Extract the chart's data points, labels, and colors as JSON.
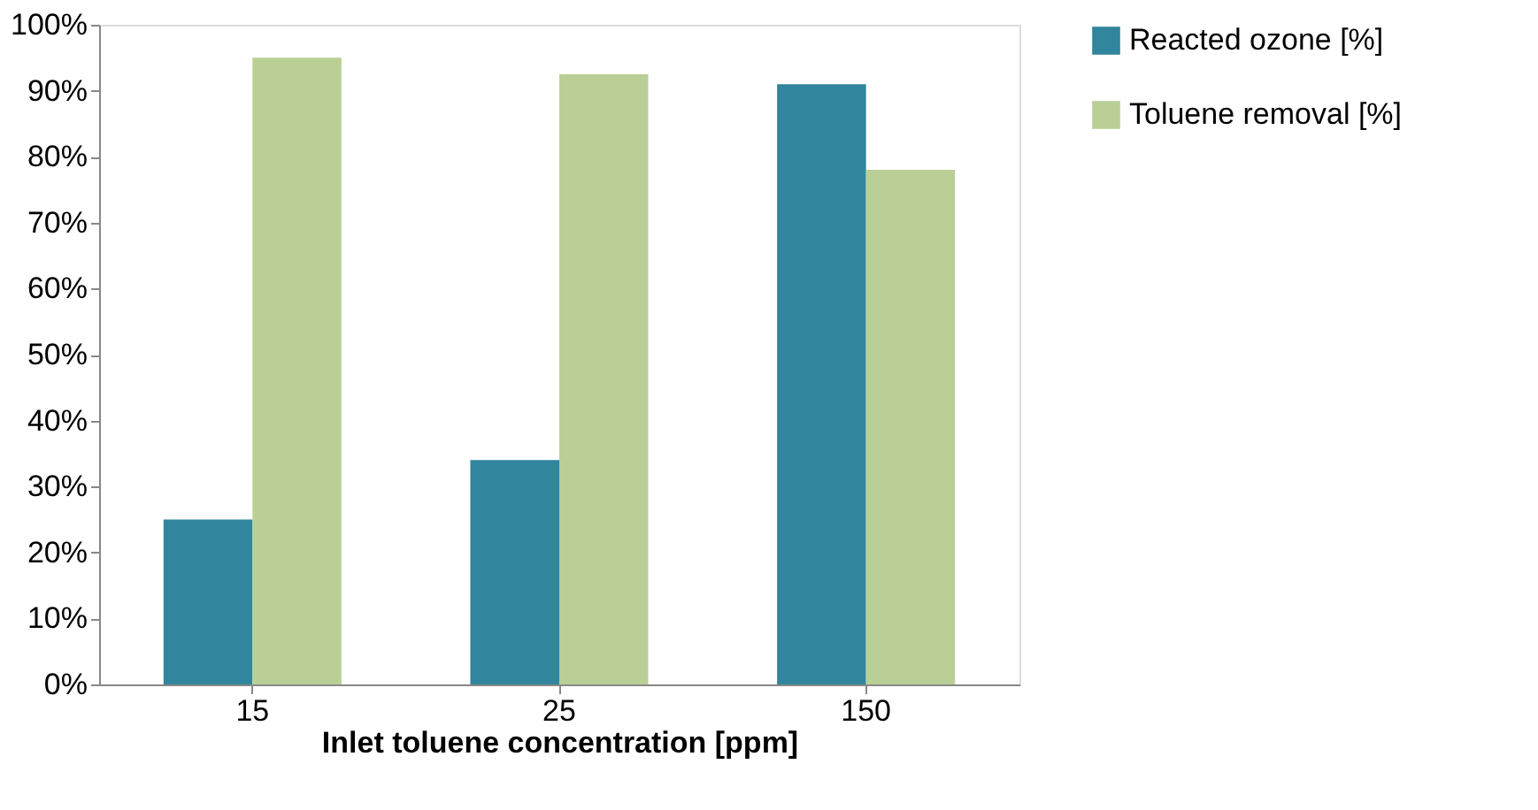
{
  "chart_data": {
    "type": "bar",
    "xlabel": "Inlet toluene concentration [ppm]",
    "categories": [
      "15",
      "25",
      "150"
    ],
    "series": [
      {
        "name": "Reacted ozone [%]",
        "color": "#31859c",
        "values": [
          25,
          34,
          91
        ]
      },
      {
        "name": "Toluene removal [%]",
        "color": "#b9cf96",
        "values": [
          95,
          92.5,
          78
        ]
      }
    ],
    "ylim": [
      0,
      100
    ],
    "yticks": [
      {
        "value": 0,
        "label": "0%"
      },
      {
        "value": 10,
        "label": "10%"
      },
      {
        "value": 20,
        "label": "20%"
      },
      {
        "value": 30,
        "label": "30%"
      },
      {
        "value": 40,
        "label": "40%"
      },
      {
        "value": 50,
        "label": "50%"
      },
      {
        "value": 60,
        "label": "60%"
      },
      {
        "value": 70,
        "label": "70%"
      },
      {
        "value": 80,
        "label": "80%"
      },
      {
        "value": 90,
        "label": "90%"
      },
      {
        "value": 100,
        "label": "100%"
      }
    ],
    "grid": false,
    "legend": "right"
  }
}
